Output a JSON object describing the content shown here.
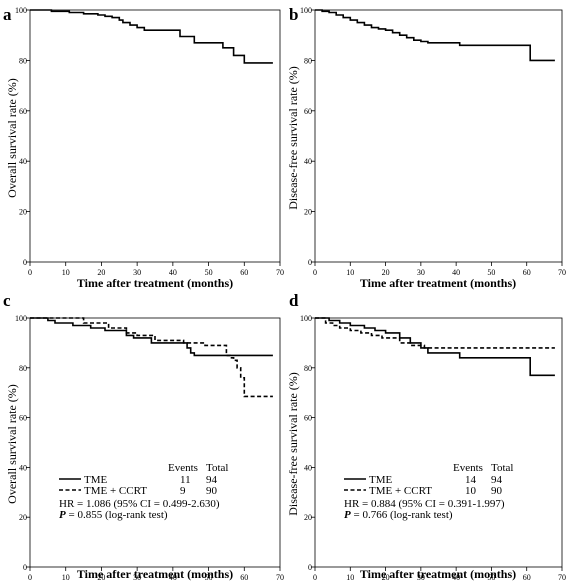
{
  "chart_data": [
    {
      "panel": "a",
      "type": "line",
      "xlabel": "Time after treatment (months)",
      "ylabel": "Overall survival rate (%)",
      "xlim": [
        0,
        70
      ],
      "ylim": [
        0,
        100
      ],
      "xticks": [
        0,
        10,
        20,
        30,
        40,
        50,
        60,
        70
      ],
      "yticks": [
        0,
        20,
        40,
        60,
        80,
        100
      ],
      "grid": false,
      "series": [
        {
          "style": "solid",
          "x": [
            0,
            6,
            11,
            15,
            19,
            21,
            23,
            25,
            26,
            28,
            30,
            32,
            36,
            42,
            46,
            54,
            57,
            60,
            68
          ],
          "y": [
            100,
            99.5,
            99,
            98.5,
            98,
            97.5,
            97,
            96,
            95,
            94,
            93,
            92,
            92,
            89.5,
            87,
            85,
            82,
            79,
            79
          ]
        }
      ]
    },
    {
      "panel": "b",
      "type": "line",
      "xlabel": "Time after treatment (months)",
      "ylabel": "Disease-free survival rate (%)",
      "xlim": [
        0,
        70
      ],
      "ylim": [
        0,
        100
      ],
      "xticks": [
        0,
        10,
        20,
        30,
        40,
        50,
        60,
        70
      ],
      "yticks": [
        0,
        20,
        40,
        60,
        80,
        100
      ],
      "grid": false,
      "series": [
        {
          "style": "solid",
          "x": [
            0,
            2,
            4,
            6,
            8,
            10,
            12,
            14,
            16,
            18,
            20,
            22,
            24,
            26,
            28,
            30,
            32,
            36,
            40,
            41,
            61,
            68
          ],
          "y": [
            100,
            99.5,
            99,
            98,
            97,
            96,
            95,
            94,
            93,
            92.5,
            92,
            91,
            90,
            89,
            88,
            87.5,
            87,
            87,
            87,
            86,
            80,
            80
          ]
        }
      ]
    },
    {
      "panel": "c",
      "type": "line",
      "xlabel": "Time after treatment (months)",
      "ylabel": "Overall survival rate (%)",
      "xlim": [
        0,
        70
      ],
      "ylim": [
        0,
        100
      ],
      "xticks": [
        0,
        10,
        20,
        30,
        40,
        50,
        60,
        70
      ],
      "yticks": [
        0,
        20,
        40,
        60,
        80,
        100
      ],
      "grid": false,
      "legend_position": "bottom-left",
      "legend_header": {
        "events": "Events",
        "total": "Total"
      },
      "series": [
        {
          "name": "TME",
          "events": "11",
          "total": "94",
          "style": "solid",
          "x": [
            0,
            5,
            7,
            12,
            17,
            21,
            27,
            29,
            34,
            44,
            45,
            46,
            68
          ],
          "y": [
            100,
            99,
            98,
            97,
            96,
            95,
            93,
            92,
            90,
            88,
            86,
            85,
            85
          ]
        },
        {
          "name": "TME + CCRT",
          "events": "9",
          "total": "90",
          "style": "dashed",
          "x": [
            0,
            15,
            22,
            27,
            30,
            35,
            41,
            43,
            49,
            55,
            56,
            57,
            58,
            59,
            60,
            68
          ],
          "y": [
            100,
            98,
            96,
            94,
            93,
            91,
            91,
            90,
            89,
            85,
            84,
            83,
            80,
            76,
            68.5,
            68.5
          ]
        }
      ],
      "stats": {
        "hr_text": "HR = 1.086 (95% CI = 0.499-2.630)",
        "p_label": "P",
        "p_text": " = 0.855 (log-rank test)"
      }
    },
    {
      "panel": "d",
      "type": "line",
      "xlabel": "Time after treatment (months)",
      "ylabel": "Disease-free survival rate (%)",
      "xlim": [
        0,
        70
      ],
      "ylim": [
        0,
        100
      ],
      "xticks": [
        0,
        10,
        20,
        30,
        40,
        50,
        60,
        70
      ],
      "yticks": [
        0,
        20,
        40,
        60,
        80,
        100
      ],
      "grid": false,
      "legend_position": "bottom-left",
      "legend_header": {
        "events": "Events",
        "total": "Total"
      },
      "series": [
        {
          "name": "TME",
          "events": "14",
          "total": "94",
          "style": "solid",
          "x": [
            0,
            4,
            7,
            10,
            14,
            17,
            20,
            24,
            27,
            30,
            32,
            41,
            61,
            68
          ],
          "y": [
            100,
            99,
            98,
            97,
            96,
            95,
            94,
            92,
            90,
            88,
            86,
            84,
            77,
            77
          ]
        },
        {
          "name": "TME + CCRT",
          "events": "10",
          "total": "90",
          "style": "dashed",
          "x": [
            0,
            3,
            5,
            7,
            10,
            13,
            16,
            19,
            24,
            27,
            31,
            68
          ],
          "y": [
            100,
            98,
            97,
            96,
            95,
            94,
            93,
            92,
            90,
            89,
            88,
            88
          ]
        }
      ],
      "stats": {
        "hr_text": "HR = 0.884 (95% CI = 0.391-1.997)",
        "p_label": "P",
        "p_text": " = 0.766 (log-rank test)"
      }
    }
  ]
}
